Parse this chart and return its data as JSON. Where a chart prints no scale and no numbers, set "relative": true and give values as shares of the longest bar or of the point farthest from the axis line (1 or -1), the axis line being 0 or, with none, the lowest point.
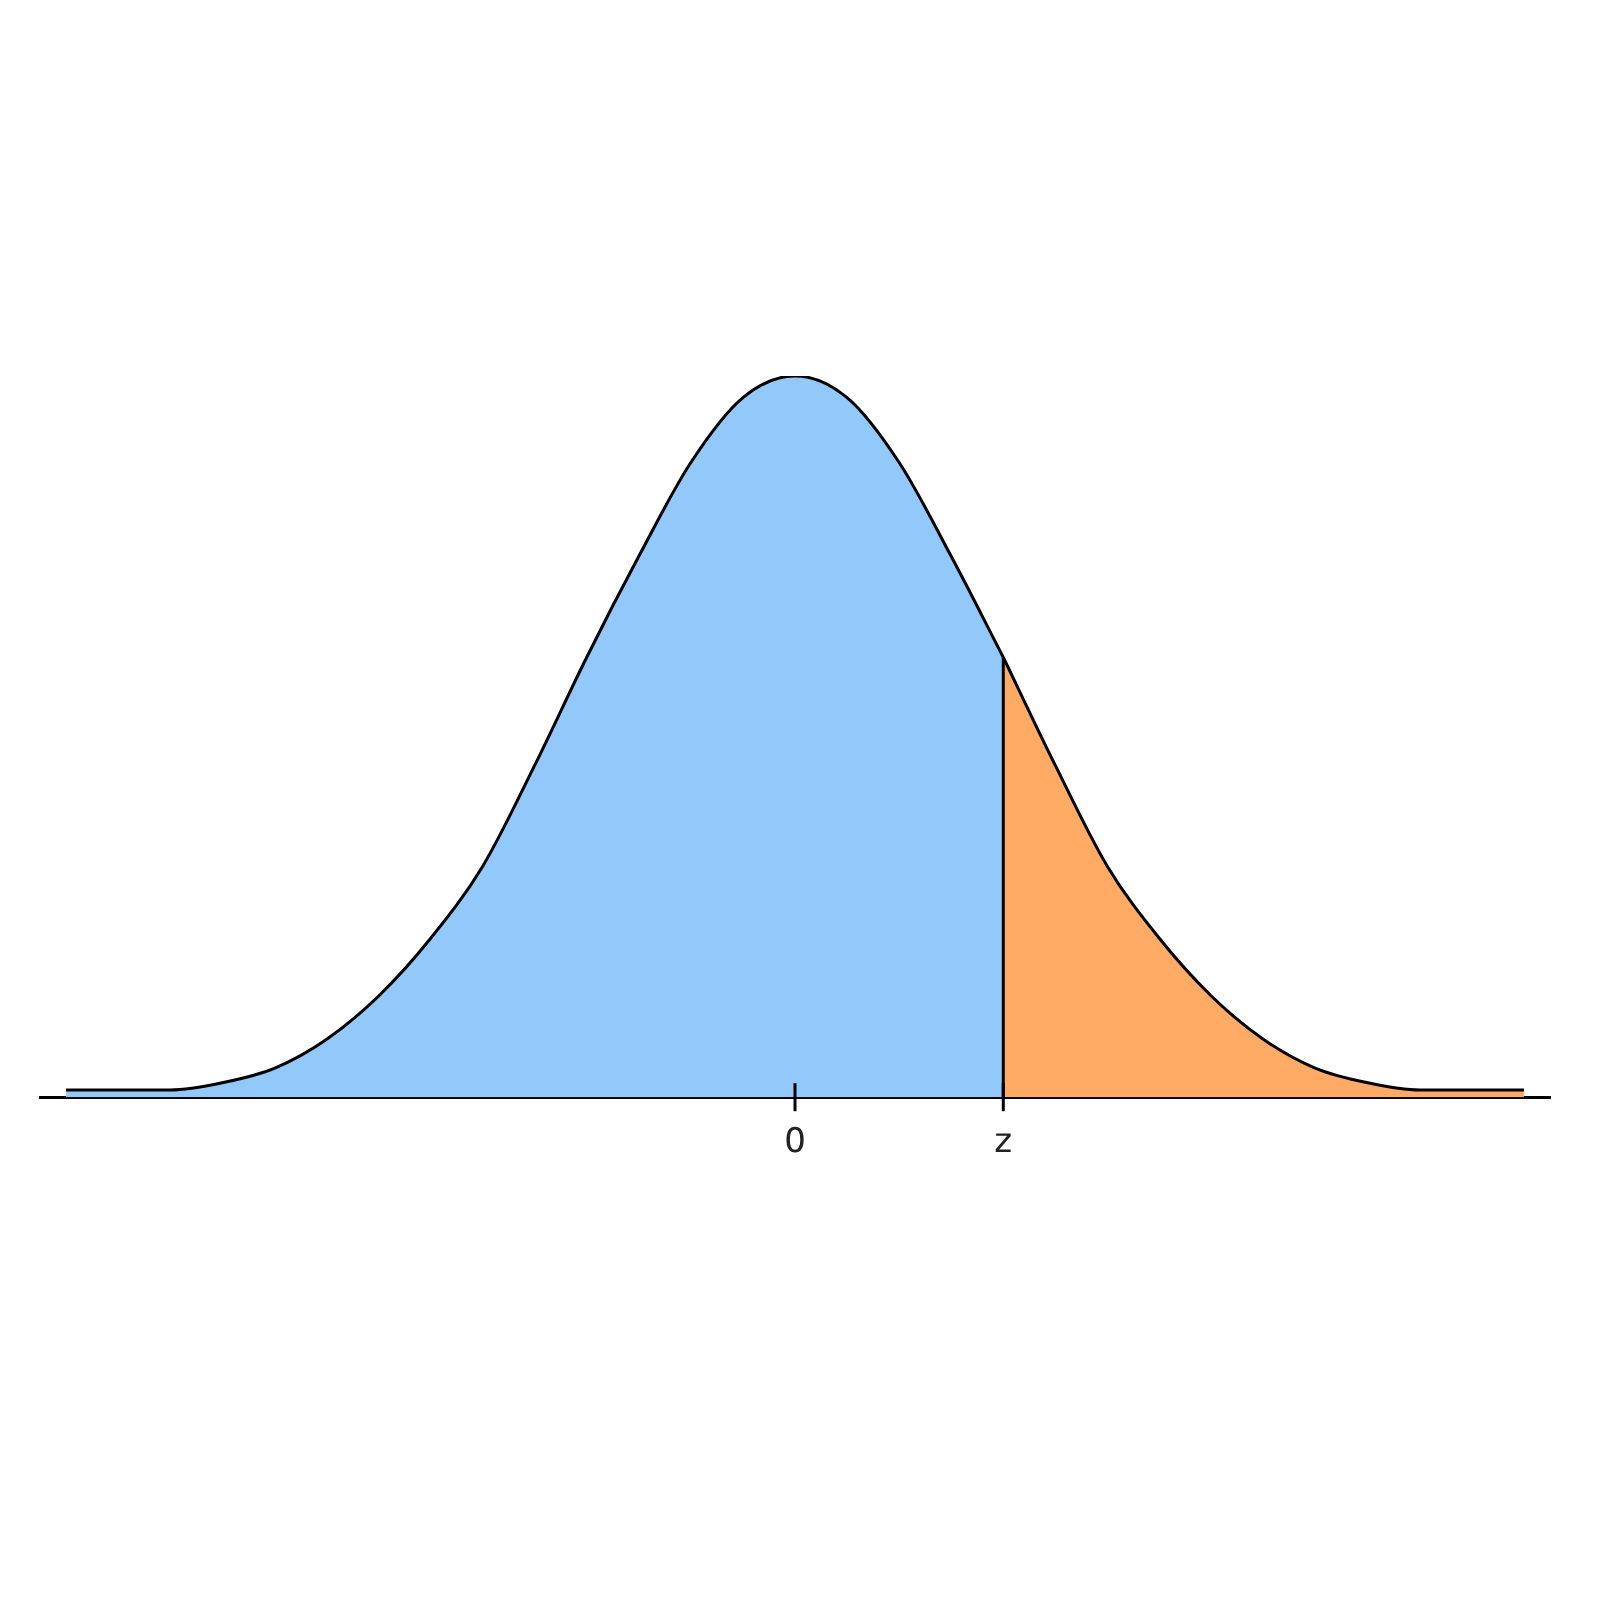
{
  "chart_data": {
    "type": "area",
    "relative": true,
    "categories": [
      null,
      null,
      null,
      null,
      null,
      null,
      null,
      null,
      null,
      null,
      null,
      null,
      null,
      null,
      "0",
      null,
      null,
      null,
      "z",
      null,
      null,
      null,
      null,
      null,
      null,
      null,
      null,
      null,
      null
    ],
    "ref_lines": [
      {
        "axis": "x",
        "value": "z",
        "color": "#000000"
      }
    ],
    "legend": false,
    "grid": false,
    "tick_labels": "x",
    "marker": "none",
    "series": [
      {
        "color": "#93c9fa",
        "values": [
          0.01,
          0.01,
          0.01,
          0.02,
          0.04,
          0.08,
          0.14,
          0.22,
          0.32,
          0.46,
          0.61,
          0.75,
          0.88,
          0.97,
          1,
          0.97,
          0.88,
          0.75,
          0.61,
          null,
          null,
          null,
          null,
          null,
          null,
          null,
          null,
          null,
          null
        ]
      },
      {
        "color": "#ffab66",
        "values": [
          null,
          null,
          null,
          null,
          null,
          null,
          null,
          null,
          null,
          null,
          null,
          null,
          null,
          null,
          null,
          null,
          null,
          null,
          0.61,
          0.46,
          0.32,
          0.22,
          0.14,
          0.08,
          0.04,
          0.02,
          0.01,
          0.01,
          0.01
        ]
      }
    ]
  }
}
